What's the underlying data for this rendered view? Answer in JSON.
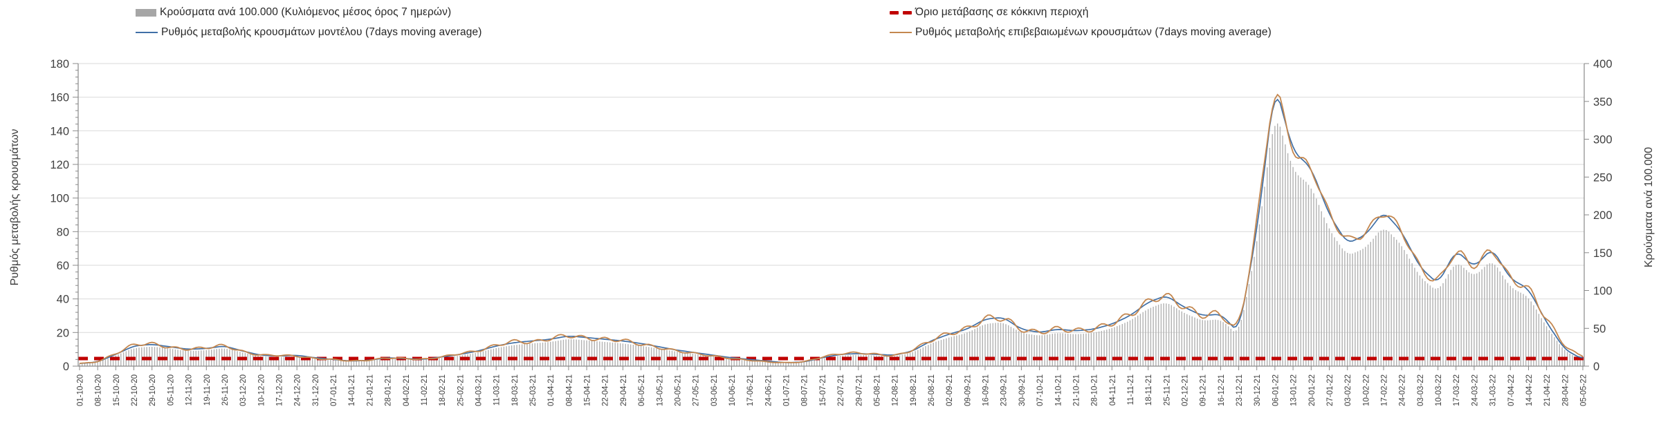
{
  "chart_data": {
    "type": "bar+line combo, weekly labeled time axis (daily-density bars)",
    "x": [
      "01-10-20",
      "08-10-20",
      "15-10-20",
      "22-10-20",
      "29-10-20",
      "05-11-20",
      "12-11-20",
      "19-11-20",
      "26-11-20",
      "03-12-20",
      "10-12-20",
      "17-12-20",
      "24-12-20",
      "31-12-20",
      "07-01-21",
      "14-01-21",
      "21-01-21",
      "28-01-21",
      "04-02-21",
      "11-02-21",
      "18-02-21",
      "25-02-21",
      "04-03-21",
      "11-03-21",
      "18-03-21",
      "25-03-21",
      "01-04-21",
      "08-04-21",
      "15-04-21",
      "22-04-21",
      "29-04-21",
      "06-05-21",
      "13-05-21",
      "20-05-21",
      "27-05-21",
      "03-06-21",
      "10-06-21",
      "17-06-21",
      "24-06-21",
      "01-07-21",
      "08-07-21",
      "15-07-21",
      "22-07-21",
      "29-07-21",
      "05-08-21",
      "12-08-21",
      "19-08-21",
      "26-08-21",
      "02-09-21",
      "09-09-21",
      "16-09-21",
      "23-09-21",
      "30-09-21",
      "07-10-21",
      "14-10-21",
      "21-10-21",
      "28-10-21",
      "04-11-21",
      "11-11-21",
      "18-11-21",
      "25-11-21",
      "02-12-21",
      "09-12-21",
      "16-12-21",
      "23-12-21",
      "30-12-21",
      "06-01-22",
      "13-01-22",
      "20-01-22",
      "27-01-22",
      "03-02-22",
      "10-02-22",
      "17-02-22",
      "24-02-22",
      "03-03-22",
      "10-03-22",
      "17-03-22",
      "24-03-22",
      "31-03-22",
      "07-04-22",
      "14-04-22",
      "21-04-22",
      "28-04-22",
      "05-05-22"
    ],
    "series": [
      {
        "name": "Κρούσματα ανά 100.000 (Κυλιόμενος μέσος όρος 7 ημερών)",
        "type": "bar",
        "axis": "right",
        "color": "#b1b1b1",
        "values": [
          3,
          5,
          14,
          24,
          26,
          23,
          20,
          21,
          24,
          18,
          13,
          12,
          13,
          10,
          8,
          6,
          7,
          10,
          9,
          8,
          11,
          14,
          18,
          24,
          28,
          30,
          32,
          36,
          34,
          32,
          30,
          27,
          23,
          19,
          16,
          13,
          10,
          8,
          6,
          4,
          5,
          10,
          14,
          15,
          14,
          13,
          18,
          30,
          38,
          44,
          56,
          58,
          44,
          40,
          44,
          42,
          44,
          50,
          60,
          76,
          85,
          70,
          60,
          62,
          40,
          160,
          340,
          258,
          238,
          180,
          146,
          156,
          185,
          160,
          118,
          98,
          139,
          118,
          141,
          104,
          92,
          52,
          20,
          8
        ]
      },
      {
        "name": "Ρυθμός μεταβολής κρουσμάτων μοντέλου (7days moving average)",
        "type": "line",
        "axis": "left",
        "color": "#3f6fa6",
        "values": [
          1.5,
          2.5,
          7,
          12,
          13,
          11.5,
          10,
          10.5,
          12,
          9,
          6.5,
          6,
          6.5,
          5,
          4,
          3,
          3.5,
          5,
          4.5,
          4,
          5.5,
          7,
          9,
          12,
          14,
          15,
          16,
          18,
          17,
          16,
          15,
          13.5,
          11.5,
          9.5,
          8,
          6.5,
          5,
          4,
          3,
          2,
          2.5,
          5,
          7,
          7.5,
          7,
          6.5,
          9,
          15,
          19,
          22,
          28,
          29,
          22,
          20,
          22,
          21,
          22,
          25,
          30,
          38,
          42,
          35,
          30,
          31,
          20,
          80,
          168,
          128,
          118,
          90,
          73,
          78,
          92,
          80,
          59,
          49,
          69,
          59,
          70,
          52,
          46,
          26,
          10,
          4
        ]
      },
      {
        "name": "Ρυθμός μεταβολής επιβεβαιωμένων κρουσμάτων (7days moving average)",
        "type": "line",
        "axis": "left",
        "color": "#c4874f",
        "values": [
          1.5,
          2.5,
          7.5,
          13,
          13.5,
          11,
          10,
          11,
          12.5,
          8.5,
          6.5,
          6.5,
          6,
          4.5,
          4,
          3,
          3.5,
          5,
          4.5,
          4,
          5.5,
          7.5,
          9,
          12.5,
          15,
          14,
          16.5,
          18.5,
          16.5,
          16,
          15.5,
          13,
          11,
          9,
          7.5,
          6,
          4.5,
          3.5,
          2.5,
          2,
          2.5,
          5.5,
          7.5,
          8,
          7,
          6,
          9.5,
          15.5,
          19.5,
          22,
          28.5,
          29,
          21.5,
          20,
          22.5,
          21,
          22,
          25.5,
          30.5,
          38.5,
          42.5,
          35,
          30,
          31.5,
          20,
          85,
          171,
          126,
          119,
          90,
          74,
          79,
          93,
          81,
          58,
          49,
          70,
          58,
          71,
          51,
          47,
          28,
          12,
          5
        ]
      },
      {
        "name": "Όριο μετάβασης σε κόκκινη περιοχή",
        "type": "dashed-threshold",
        "axis": "right",
        "color": "#c00000",
        "value": 10
      }
    ],
    "left_axis": {
      "label": "Ρυθμός μεταβολής κρουσμάτων",
      "min": 0,
      "max": 180,
      "step": 20,
      "minor_step": 4
    },
    "right_axis": {
      "label": "Κρούσματα ανά 100.000",
      "min": 0,
      "max": 400,
      "step": 50
    },
    "grid": true,
    "legend_position": "top",
    "colors": {
      "grid": "#d9d9d9",
      "axis": "#898989",
      "tick_text": "#404040"
    }
  }
}
